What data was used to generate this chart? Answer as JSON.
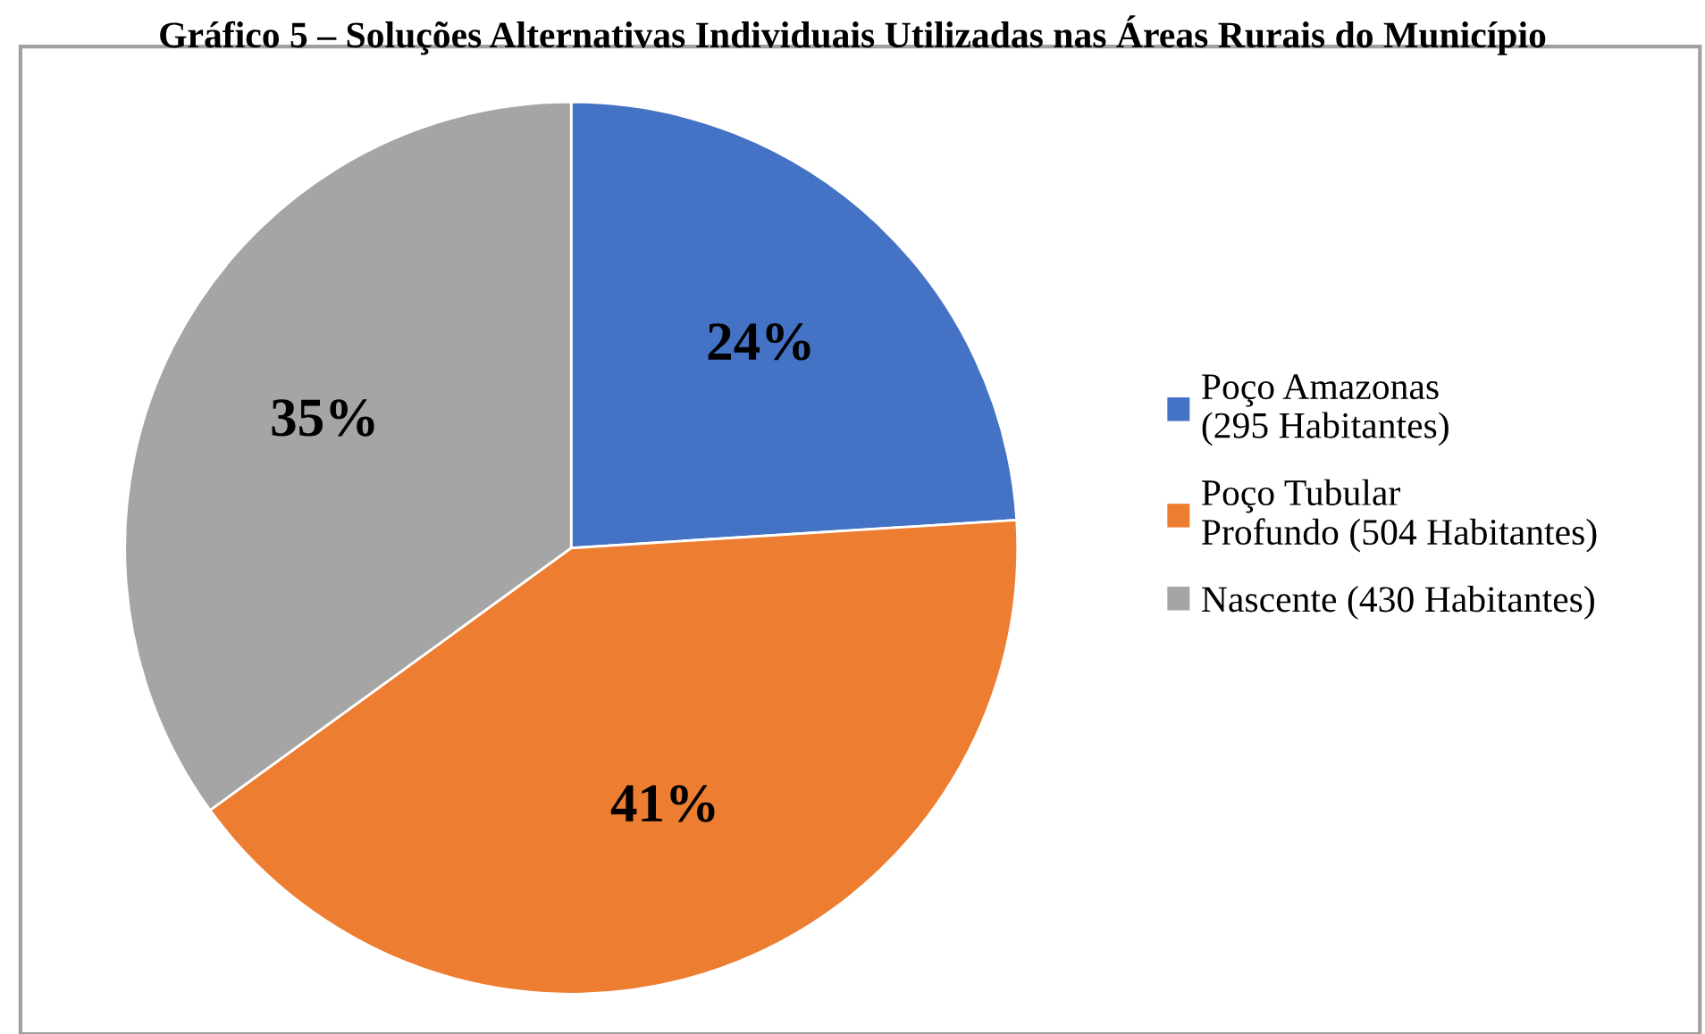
{
  "chart_data": {
    "type": "pie",
    "title": "Gráfico 5 – Soluções Alternativas Individuais Utilizadas nas Áreas Rurais do Município",
    "categories": [
      "Poço Amazonas (295 Habitantes)",
      "Poço Tubular Profundo (504 Habitantes)",
      "Nascente (430 Habitantes)"
    ],
    "values": [
      24,
      41,
      35
    ],
    "colors": [
      "#4472c4",
      "#ed7d31",
      "#a5a5a5"
    ],
    "value_labels": [
      "24%",
      "41%",
      "35%"
    ],
    "legend": "right"
  }
}
